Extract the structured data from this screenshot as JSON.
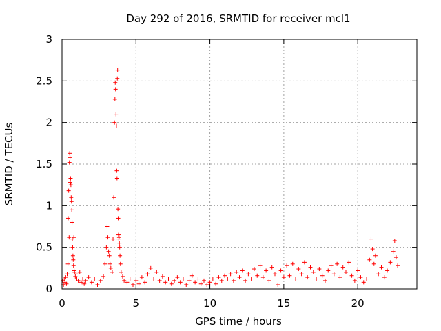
{
  "chart_data": {
    "type": "scatter",
    "title": "Day 292 of 2016, SRMTID for receiver mcl1",
    "xlabel": "GPS time / hours",
    "ylabel": "SRMTID / TECUs",
    "xlim": [
      0,
      24
    ],
    "ylim": [
      0,
      3
    ],
    "xticks": [
      0,
      5,
      10,
      15,
      20
    ],
    "xtick_labels": [
      "0",
      "5",
      "10",
      "15",
      "20"
    ],
    "yticks": [
      0,
      0.5,
      1,
      1.5,
      2,
      2.5,
      3
    ],
    "ytick_labels": [
      "0",
      "0.5",
      "1",
      "1.5",
      "2",
      "2.5",
      "3"
    ],
    "grid": true,
    "marker": "+",
    "color": "#ff0000",
    "series": [
      {
        "name": "SRMTID",
        "points": [
          [
            0.05,
            0.1
          ],
          [
            0.1,
            0.05
          ],
          [
            0.15,
            0.12
          ],
          [
            0.2,
            0.08
          ],
          [
            0.25,
            0.14
          ],
          [
            0.3,
            0.06
          ],
          [
            0.35,
            0.18
          ],
          [
            0.4,
            0.3
          ],
          [
            0.42,
            0.85
          ],
          [
            0.45,
            1.18
          ],
          [
            0.48,
            0.62
          ],
          [
            0.5,
            1.52
          ],
          [
            0.52,
            1.63
          ],
          [
            0.54,
            1.58
          ],
          [
            0.56,
            1.28
          ],
          [
            0.58,
            1.33
          ],
          [
            0.6,
            1.25
          ],
          [
            0.62,
            1.1
          ],
          [
            0.64,
            1.05
          ],
          [
            0.66,
            0.95
          ],
          [
            0.68,
            0.8
          ],
          [
            0.7,
            0.6
          ],
          [
            0.72,
            0.5
          ],
          [
            0.74,
            0.4
          ],
          [
            0.76,
            0.35
          ],
          [
            0.78,
            0.28
          ],
          [
            0.8,
            0.62
          ],
          [
            0.82,
            0.22
          ],
          [
            0.85,
            0.2
          ],
          [
            0.9,
            0.15
          ],
          [
            0.95,
            0.18
          ],
          [
            1.0,
            0.12
          ],
          [
            1.1,
            0.1
          ],
          [
            1.2,
            0.2
          ],
          [
            1.3,
            0.08
          ],
          [
            1.4,
            0.12
          ],
          [
            1.5,
            0.06
          ],
          [
            1.6,
            0.1
          ],
          [
            1.8,
            0.14
          ],
          [
            2.0,
            0.08
          ],
          [
            2.2,
            0.12
          ],
          [
            2.4,
            0.05
          ],
          [
            2.6,
            0.1
          ],
          [
            2.8,
            0.15
          ],
          [
            2.9,
            0.3
          ],
          [
            3.0,
            0.5
          ],
          [
            3.05,
            0.75
          ],
          [
            3.1,
            0.62
          ],
          [
            3.15,
            0.45
          ],
          [
            3.2,
            0.4
          ],
          [
            3.25,
            0.3
          ],
          [
            3.3,
            0.25
          ],
          [
            3.4,
            0.2
          ],
          [
            3.45,
            0.6
          ],
          [
            3.5,
            1.1
          ],
          [
            3.55,
            2.0
          ],
          [
            3.58,
            2.28
          ],
          [
            3.6,
            2.48
          ],
          [
            3.62,
            2.4
          ],
          [
            3.65,
            2.1
          ],
          [
            3.68,
            1.96
          ],
          [
            3.7,
            1.42
          ],
          [
            3.72,
            1.33
          ],
          [
            3.74,
            2.53
          ],
          [
            3.76,
            2.63
          ],
          [
            3.78,
            0.96
          ],
          [
            3.8,
            0.85
          ],
          [
            3.82,
            0.65
          ],
          [
            3.84,
            0.6
          ],
          [
            3.86,
            0.62
          ],
          [
            3.88,
            0.55
          ],
          [
            3.9,
            0.5
          ],
          [
            3.92,
            0.4
          ],
          [
            3.95,
            0.3
          ],
          [
            4.0,
            0.2
          ],
          [
            4.1,
            0.15
          ],
          [
            4.2,
            0.1
          ],
          [
            4.4,
            0.08
          ],
          [
            4.6,
            0.12
          ],
          [
            4.8,
            0.05
          ],
          [
            5.0,
            0.1
          ],
          [
            5.2,
            0.06
          ],
          [
            5.4,
            0.14
          ],
          [
            5.6,
            0.08
          ],
          [
            5.8,
            0.18
          ],
          [
            6.0,
            0.25
          ],
          [
            6.2,
            0.12
          ],
          [
            6.4,
            0.2
          ],
          [
            6.6,
            0.1
          ],
          [
            6.8,
            0.15
          ],
          [
            7.0,
            0.08
          ],
          [
            7.2,
            0.12
          ],
          [
            7.4,
            0.06
          ],
          [
            7.6,
            0.1
          ],
          [
            7.8,
            0.14
          ],
          [
            8.0,
            0.08
          ],
          [
            8.2,
            0.12
          ],
          [
            8.4,
            0.05
          ],
          [
            8.6,
            0.1
          ],
          [
            8.8,
            0.16
          ],
          [
            9.0,
            0.08
          ],
          [
            9.2,
            0.12
          ],
          [
            9.4,
            0.06
          ],
          [
            9.6,
            0.1
          ],
          [
            9.8,
            0.05
          ],
          [
            10.0,
            0.08
          ],
          [
            10.2,
            0.12
          ],
          [
            10.4,
            0.06
          ],
          [
            10.6,
            0.14
          ],
          [
            10.8,
            0.1
          ],
          [
            11.0,
            0.16
          ],
          [
            11.2,
            0.12
          ],
          [
            11.4,
            0.18
          ],
          [
            11.6,
            0.1
          ],
          [
            11.8,
            0.2
          ],
          [
            12.0,
            0.14
          ],
          [
            12.2,
            0.22
          ],
          [
            12.4,
            0.1
          ],
          [
            12.6,
            0.18
          ],
          [
            12.8,
            0.12
          ],
          [
            13.0,
            0.24
          ],
          [
            13.2,
            0.16
          ],
          [
            13.4,
            0.28
          ],
          [
            13.6,
            0.14
          ],
          [
            13.8,
            0.22
          ],
          [
            14.0,
            0.1
          ],
          [
            14.2,
            0.26
          ],
          [
            14.4,
            0.18
          ],
          [
            14.6,
            0.05
          ],
          [
            14.8,
            0.22
          ],
          [
            15.0,
            0.14
          ],
          [
            15.2,
            0.28
          ],
          [
            15.4,
            0.16
          ],
          [
            15.6,
            0.3
          ],
          [
            15.8,
            0.12
          ],
          [
            16.0,
            0.24
          ],
          [
            16.2,
            0.18
          ],
          [
            16.4,
            0.32
          ],
          [
            16.6,
            0.14
          ],
          [
            16.8,
            0.26
          ],
          [
            17.0,
            0.2
          ],
          [
            17.2,
            0.12
          ],
          [
            17.4,
            0.24
          ],
          [
            17.6,
            0.16
          ],
          [
            17.8,
            0.1
          ],
          [
            18.0,
            0.22
          ],
          [
            18.2,
            0.28
          ],
          [
            18.4,
            0.18
          ],
          [
            18.6,
            0.3
          ],
          [
            18.8,
            0.14
          ],
          [
            19.0,
            0.26
          ],
          [
            19.2,
            0.2
          ],
          [
            19.4,
            0.32
          ],
          [
            19.6,
            0.16
          ],
          [
            19.8,
            0.1
          ],
          [
            20.0,
            0.22
          ],
          [
            20.2,
            0.14
          ],
          [
            20.4,
            0.08
          ],
          [
            20.6,
            0.12
          ],
          [
            20.8,
            0.35
          ],
          [
            20.9,
            0.6
          ],
          [
            21.0,
            0.48
          ],
          [
            21.1,
            0.3
          ],
          [
            21.2,
            0.4
          ],
          [
            21.4,
            0.18
          ],
          [
            21.6,
            0.26
          ],
          [
            21.8,
            0.14
          ],
          [
            22.0,
            0.22
          ],
          [
            22.2,
            0.32
          ],
          [
            22.4,
            0.45
          ],
          [
            22.5,
            0.58
          ],
          [
            22.6,
            0.38
          ],
          [
            22.7,
            0.28
          ]
        ]
      }
    ]
  }
}
